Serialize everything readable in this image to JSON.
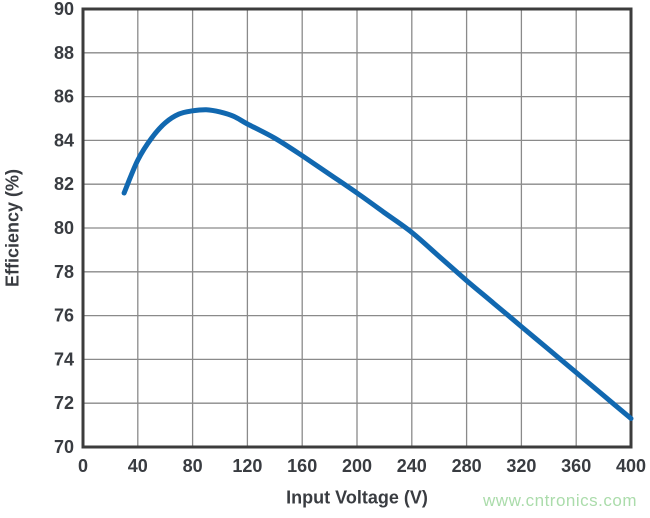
{
  "colors": {
    "background": "#ffffff",
    "curve": "#1168b0",
    "grid": "#8a8a8a",
    "border": "#3c3c3c",
    "text": "#393c41",
    "watermark": "#abdcab"
  },
  "watermark": {
    "text": "www.cntronics.com"
  },
  "chart_data": {
    "type": "line",
    "title": "",
    "xlabel": "Input Voltage (V)",
    "ylabel": "Efficiency (%)",
    "xlim": [
      0,
      400
    ],
    "ylim": [
      70,
      90
    ],
    "x_ticks": [
      0,
      40,
      80,
      120,
      160,
      200,
      240,
      280,
      320,
      360,
      400
    ],
    "y_ticks": [
      70,
      72,
      74,
      76,
      78,
      80,
      82,
      84,
      86,
      88,
      90
    ],
    "grid": true,
    "legend": false,
    "series": [
      {
        "name": "Efficiency",
        "points": [
          [
            30,
            81.6
          ],
          [
            40,
            83.1
          ],
          [
            50,
            84.1
          ],
          [
            60,
            84.8
          ],
          [
            70,
            85.2
          ],
          [
            80,
            85.35
          ],
          [
            90,
            85.4
          ],
          [
            100,
            85.3
          ],
          [
            110,
            85.1
          ],
          [
            120,
            84.75
          ],
          [
            140,
            84.1
          ],
          [
            160,
            83.3
          ],
          [
            180,
            82.45
          ],
          [
            200,
            81.6
          ],
          [
            220,
            80.7
          ],
          [
            240,
            79.8
          ],
          [
            260,
            78.7
          ],
          [
            280,
            77.6
          ],
          [
            300,
            76.55
          ],
          [
            320,
            75.5
          ],
          [
            340,
            74.45
          ],
          [
            360,
            73.4
          ],
          [
            380,
            72.35
          ],
          [
            400,
            71.3
          ]
        ]
      }
    ]
  }
}
